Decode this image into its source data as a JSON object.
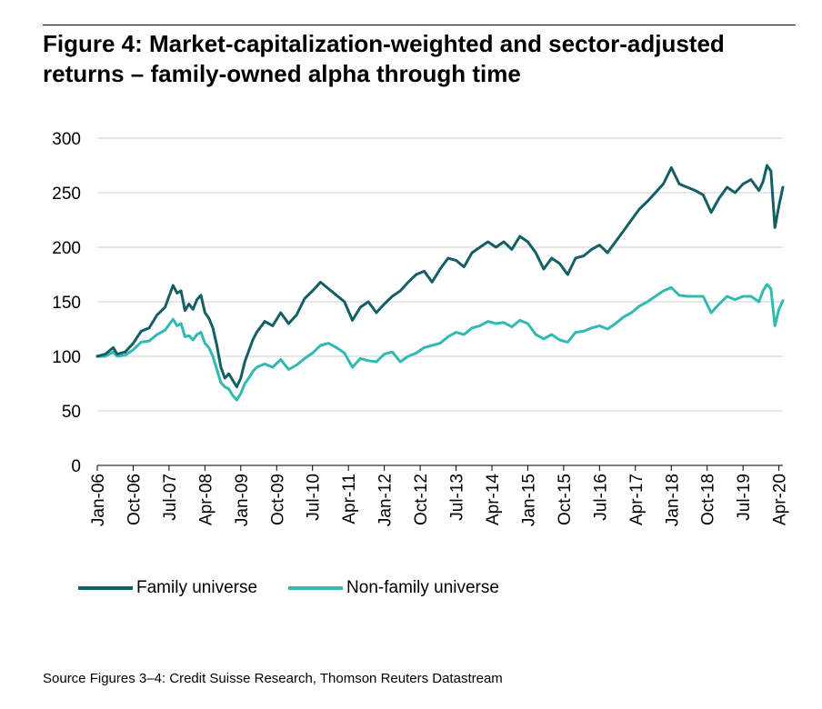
{
  "title_line1": "Figure 4: Market-capitalization-weighted and sector-adjusted",
  "title_line2": "returns – family-owned alpha through time",
  "source": "Source Figures 3–4: Credit Suisse Research, Thomson Reuters Datastream",
  "colors": {
    "family": "#135f65",
    "non_family": "#32b9b1",
    "grid": "#cfcfcf"
  },
  "chart_data": {
    "type": "line",
    "title": "Figure 4: Market-capitalization-weighted and sector-adjusted returns – family-owned alpha through time",
    "xlabel": "",
    "ylabel": "",
    "ylim": [
      0,
      300
    ],
    "yticks": [
      0,
      50,
      100,
      150,
      200,
      250,
      300
    ],
    "xlim": [
      "2006-01",
      "2020-05"
    ],
    "xtick_labels": [
      "Jan-06",
      "Oct-06",
      "Jul-07",
      "Apr-08",
      "Jan-09",
      "Oct-09",
      "Jul-10",
      "Apr-11",
      "Jan-12",
      "Oct-12",
      "Jul-13",
      "Apr-14",
      "Jan-15",
      "Oct-15",
      "Jul-16",
      "Apr-17",
      "Jan-18",
      "Oct-18",
      "Jul-19",
      "Apr-20"
    ],
    "grid": true,
    "legend": "bottom-left",
    "series": [
      {
        "name": "Family universe",
        "x": [
          "2006-01",
          "2006-03",
          "2006-05",
          "2006-06",
          "2006-08",
          "2006-10",
          "2006-12",
          "2007-02",
          "2007-04",
          "2007-06",
          "2007-08",
          "2007-09",
          "2007-10",
          "2007-11",
          "2007-12",
          "2008-01",
          "2008-02",
          "2008-03",
          "2008-04",
          "2008-05",
          "2008-06",
          "2008-07",
          "2008-08",
          "2008-09",
          "2008-10",
          "2008-11",
          "2008-12",
          "2009-01",
          "2009-02",
          "2009-03",
          "2009-04",
          "2009-05",
          "2009-07",
          "2009-09",
          "2009-11",
          "2010-01",
          "2010-03",
          "2010-05",
          "2010-07",
          "2010-09",
          "2010-11",
          "2011-01",
          "2011-03",
          "2011-05",
          "2011-07",
          "2011-09",
          "2011-11",
          "2012-01",
          "2012-03",
          "2012-05",
          "2012-07",
          "2012-09",
          "2012-11",
          "2013-01",
          "2013-03",
          "2013-05",
          "2013-07",
          "2013-09",
          "2013-11",
          "2014-01",
          "2014-03",
          "2014-05",
          "2014-07",
          "2014-09",
          "2014-11",
          "2015-01",
          "2015-03",
          "2015-05",
          "2015-07",
          "2015-09",
          "2015-11",
          "2016-01",
          "2016-03",
          "2016-05",
          "2016-07",
          "2016-09",
          "2016-11",
          "2017-01",
          "2017-03",
          "2017-05",
          "2017-07",
          "2017-09",
          "2017-11",
          "2018-01",
          "2018-03",
          "2018-05",
          "2018-07",
          "2018-09",
          "2018-11",
          "2019-01",
          "2019-03",
          "2019-05",
          "2019-07",
          "2019-09",
          "2019-11",
          "2019-12",
          "2020-01",
          "2020-02",
          "2020-03",
          "2020-04",
          "2020-05"
        ],
        "values": [
          100,
          102,
          108,
          102,
          104,
          112,
          123,
          126,
          138,
          145,
          165,
          158,
          160,
          142,
          148,
          143,
          152,
          156,
          140,
          135,
          126,
          110,
          90,
          80,
          84,
          78,
          72,
          80,
          95,
          105,
          115,
          122,
          132,
          128,
          140,
          130,
          138,
          153,
          160,
          168,
          162,
          156,
          150,
          133,
          145,
          150,
          140,
          148,
          155,
          160,
          168,
          175,
          178,
          168,
          180,
          190,
          188,
          182,
          195,
          200,
          205,
          200,
          205,
          198,
          210,
          205,
          195,
          180,
          190,
          185,
          175,
          190,
          192,
          198,
          202,
          195,
          205,
          215,
          225,
          235,
          242,
          250,
          258,
          273,
          258,
          255,
          252,
          248,
          232,
          245,
          255,
          250,
          258,
          262,
          252,
          260,
          275,
          270,
          218,
          238,
          255
        ]
      },
      {
        "name": "Non-family universe",
        "x": [
          "2006-01",
          "2006-03",
          "2006-05",
          "2006-06",
          "2006-08",
          "2006-10",
          "2006-12",
          "2007-02",
          "2007-04",
          "2007-06",
          "2007-08",
          "2007-09",
          "2007-10",
          "2007-11",
          "2007-12",
          "2008-01",
          "2008-02",
          "2008-03",
          "2008-04",
          "2008-05",
          "2008-06",
          "2008-07",
          "2008-08",
          "2008-09",
          "2008-10",
          "2008-11",
          "2008-12",
          "2009-01",
          "2009-02",
          "2009-03",
          "2009-04",
          "2009-05",
          "2009-07",
          "2009-09",
          "2009-11",
          "2010-01",
          "2010-03",
          "2010-05",
          "2010-07",
          "2010-09",
          "2010-11",
          "2011-01",
          "2011-03",
          "2011-05",
          "2011-07",
          "2011-09",
          "2011-11",
          "2012-01",
          "2012-03",
          "2012-05",
          "2012-07",
          "2012-09",
          "2012-11",
          "2013-01",
          "2013-03",
          "2013-05",
          "2013-07",
          "2013-09",
          "2013-11",
          "2014-01",
          "2014-03",
          "2014-05",
          "2014-07",
          "2014-09",
          "2014-11",
          "2015-01",
          "2015-03",
          "2015-05",
          "2015-07",
          "2015-09",
          "2015-11",
          "2016-01",
          "2016-03",
          "2016-05",
          "2016-07",
          "2016-09",
          "2016-11",
          "2017-01",
          "2017-03",
          "2017-05",
          "2017-07",
          "2017-09",
          "2017-11",
          "2018-01",
          "2018-03",
          "2018-05",
          "2018-07",
          "2018-09",
          "2018-11",
          "2019-01",
          "2019-03",
          "2019-05",
          "2019-07",
          "2019-09",
          "2019-11",
          "2019-12",
          "2020-01",
          "2020-02",
          "2020-03",
          "2020-04",
          "2020-05"
        ],
        "values": [
          100,
          100,
          104,
          100,
          101,
          106,
          113,
          114,
          120,
          124,
          134,
          128,
          130,
          118,
          119,
          115,
          120,
          122,
          112,
          108,
          100,
          88,
          76,
          72,
          70,
          64,
          60,
          66,
          75,
          80,
          86,
          90,
          93,
          90,
          97,
          88,
          92,
          98,
          103,
          110,
          112,
          108,
          103,
          90,
          98,
          96,
          95,
          102,
          104,
          95,
          100,
          103,
          108,
          110,
          112,
          118,
          122,
          120,
          126,
          128,
          132,
          130,
          131,
          127,
          133,
          130,
          120,
          116,
          120,
          115,
          113,
          122,
          123,
          126,
          128,
          125,
          130,
          136,
          140,
          146,
          150,
          155,
          160,
          163,
          156,
          155,
          155,
          155,
          140,
          148,
          155,
          152,
          155,
          155,
          150,
          160,
          166,
          162,
          128,
          143,
          151
        ]
      }
    ]
  }
}
